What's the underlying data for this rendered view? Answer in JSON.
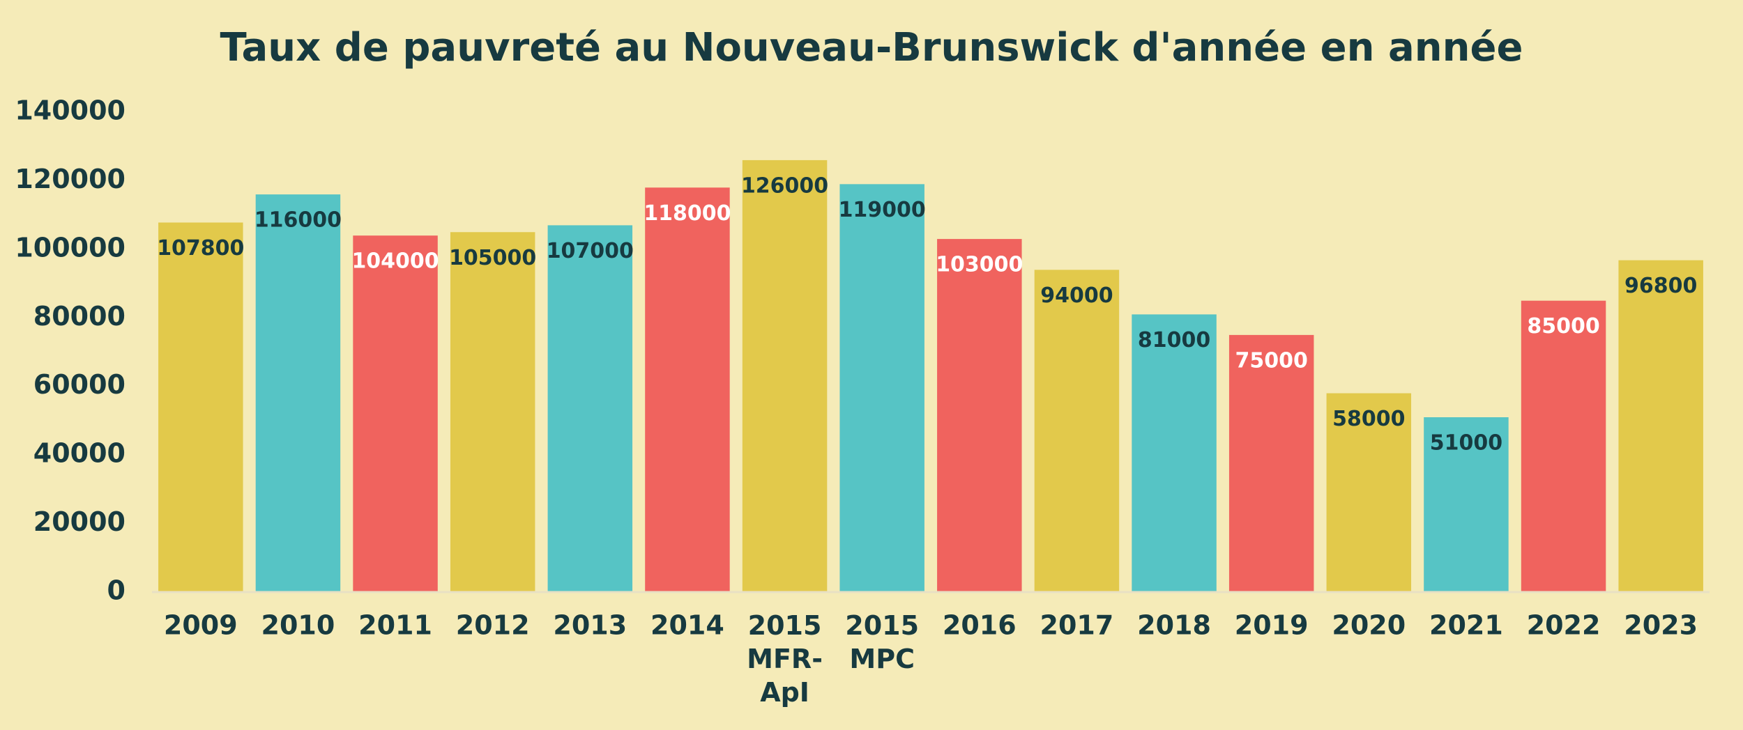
{
  "chart_data": {
    "type": "bar",
    "title": "Taux de pauvreté au Nouveau-Brunswick d'année en année",
    "categories": [
      "2009",
      "2010",
      "2011",
      "2012",
      "2013",
      "2014",
      "2015 MFR-ApI",
      "2015 MPC",
      "2016",
      "2017",
      "2018",
      "2019",
      "2020",
      "2021",
      "2022",
      "2023"
    ],
    "values": [
      107800,
      116000,
      104000,
      105000,
      107000,
      118000,
      126000,
      119000,
      103000,
      94000,
      81000,
      75000,
      58000,
      51000,
      85000,
      96800
    ],
    "colors": [
      "#e2c94b",
      "#56c4c5",
      "#f0635e",
      "#e2c94b",
      "#56c4c5",
      "#f0635e",
      "#e2c94b",
      "#56c4c5",
      "#f0635e",
      "#e2c94b",
      "#56c4c5",
      "#f0635e",
      "#e2c94b",
      "#56c4c5",
      "#f0635e",
      "#e2c94b"
    ],
    "ylim": [
      0,
      140000
    ],
    "yticks": [
      0,
      20000,
      40000,
      60000,
      80000,
      100000,
      120000,
      140000
    ],
    "grid": false
  }
}
